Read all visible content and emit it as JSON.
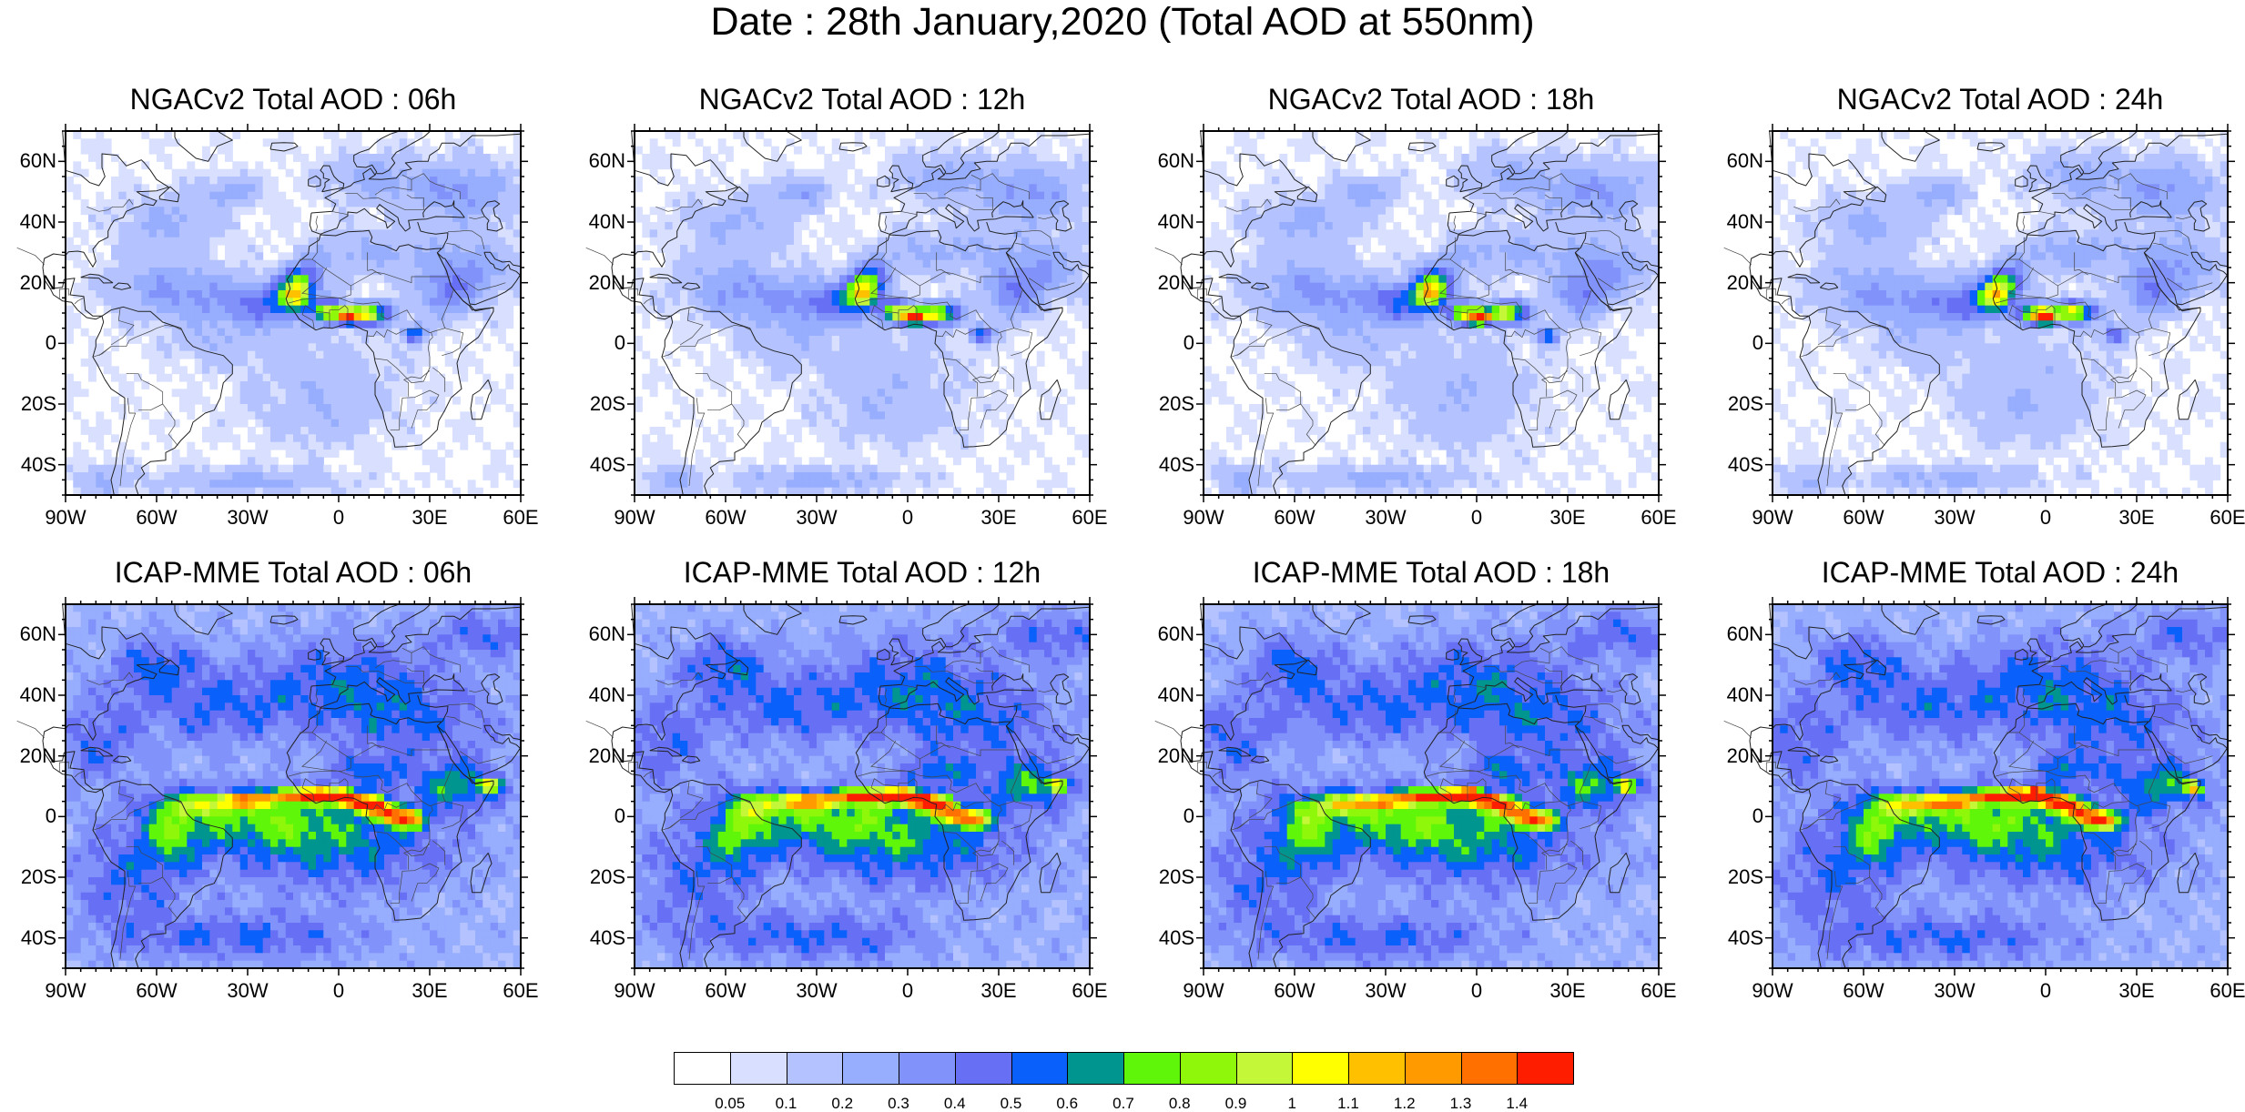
{
  "title": "Date : 28th January,2020 (Total AOD at 550nm)",
  "panels": [
    {
      "title": "NGACv2 Total AOD : 06h",
      "model": "ngac",
      "hour": 6
    },
    {
      "title": "NGACv2 Total AOD : 12h",
      "model": "ngac",
      "hour": 12
    },
    {
      "title": "NGACv2 Total AOD : 18h",
      "model": "ngac",
      "hour": 18
    },
    {
      "title": "NGACv2 Total AOD : 24h",
      "model": "ngac",
      "hour": 24
    },
    {
      "title": "ICAP-MME Total AOD : 06h",
      "model": "icap",
      "hour": 6
    },
    {
      "title": "ICAP-MME Total AOD : 12h",
      "model": "icap",
      "hour": 12
    },
    {
      "title": "ICAP-MME Total AOD : 18h",
      "model": "icap",
      "hour": 18
    },
    {
      "title": "ICAP-MME Total AOD : 24h",
      "model": "icap",
      "hour": 24
    }
  ],
  "lat_labels": [
    "60N",
    "40N",
    "20N",
    "0",
    "20S",
    "40S"
  ],
  "lat_values": [
    60,
    40,
    20,
    0,
    -20,
    -40
  ],
  "lon_labels": [
    "90W",
    "60W",
    "30W",
    "0",
    "30E",
    "60E"
  ],
  "lon_values": [
    -90,
    -60,
    -30,
    0,
    30,
    60
  ],
  "map_extent": {
    "lon_min": -90,
    "lon_max": 60,
    "lat_min": -50,
    "lat_max": 70
  },
  "colorbar": {
    "colors": [
      "#ffffff",
      "#d9e0ff",
      "#b4c3ff",
      "#97adfe",
      "#8292fb",
      "#6770f4",
      "#0a60fa",
      "#00958f",
      "#60f60a",
      "#8ff70a",
      "#c3f737",
      "#ffff00",
      "#ffc000",
      "#ff9a00",
      "#ff7000",
      "#ff1d00"
    ],
    "labels": [
      "0.05",
      "0.1",
      "0.2",
      "0.3",
      "0.4",
      "0.5",
      "0.6",
      "0.7",
      "0.8",
      "0.9",
      "1",
      "1.1",
      "1.2",
      "1.3",
      "1.4"
    ]
  }
}
